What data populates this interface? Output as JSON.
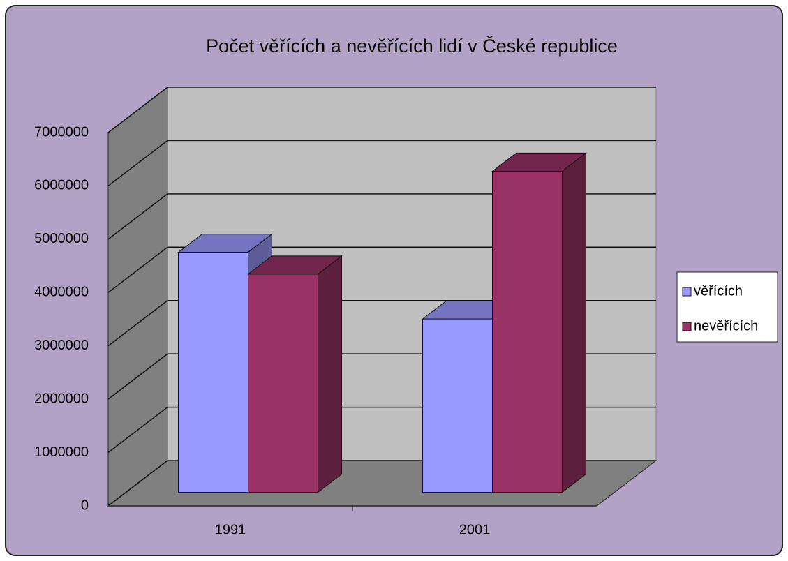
{
  "chart_data": {
    "type": "bar3d",
    "title": "Počet věřících a nevěřících lidí v České republice",
    "categories": [
      "1991",
      "2001"
    ],
    "series": [
      {
        "name": "věřících",
        "color": "#9999ff",
        "values": [
          4500000,
          3250000
        ]
      },
      {
        "name": "nevěřících",
        "color": "#993366",
        "values": [
          4090000,
          6020000
        ]
      }
    ],
    "ylim": [
      0,
      7000000
    ],
    "yticks": [
      0,
      1000000,
      2000000,
      3000000,
      4000000,
      5000000,
      6000000,
      7000000
    ],
    "grid": true,
    "legend": "right"
  }
}
